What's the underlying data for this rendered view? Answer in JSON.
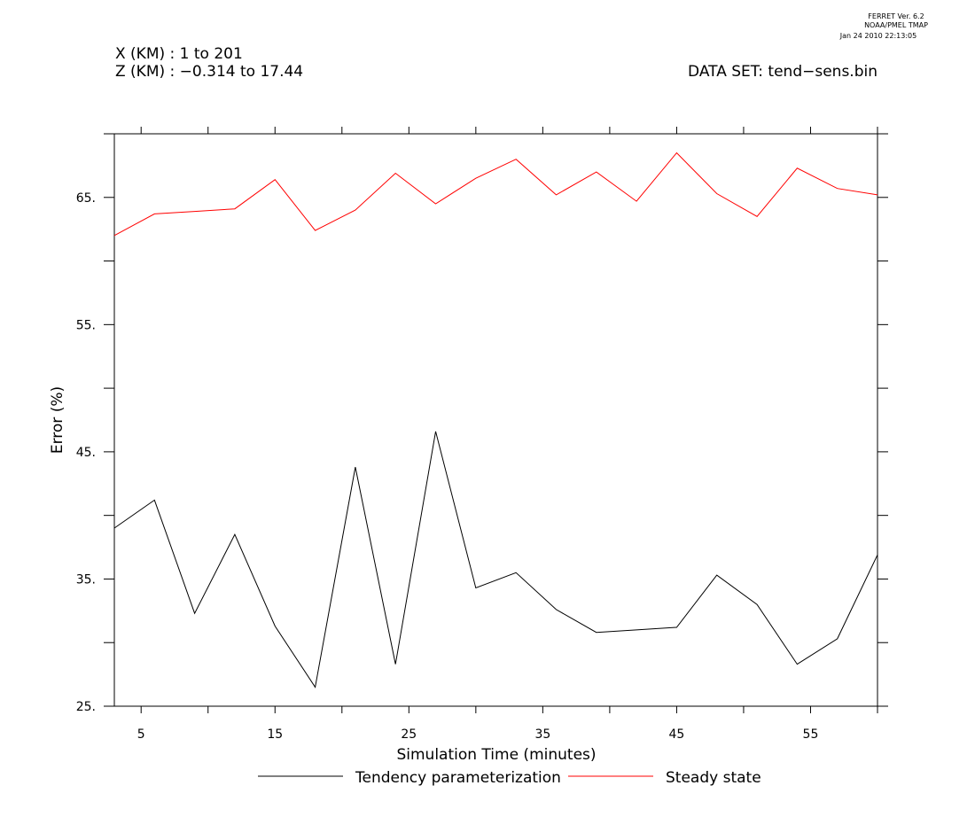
{
  "header": {
    "stamp_line1": "FERRET Ver. 6.2",
    "stamp_line2": "NOAA/PMEL TMAP",
    "stamp_line3": "Jan 24 2010 22:13:05",
    "x_range": "X (KM) : 1 to 201",
    "z_range": "Z (KM) : −0.314 to 17.44",
    "dataset": "DATA SET: tend−sens.bin"
  },
  "chart_data": {
    "type": "line",
    "xlabel": "Simulation Time (minutes)",
    "ylabel": "Error (%)",
    "xlim": [
      3,
      60
    ],
    "ylim": [
      25,
      70
    ],
    "x_ticks": [
      5,
      15,
      25,
      35,
      45,
      55
    ],
    "x_minor_ticks": [
      10,
      20,
      30,
      40,
      50,
      60
    ],
    "y_ticks": [
      25,
      35,
      45,
      55,
      65
    ],
    "y_tick_labels": [
      "25.",
      "35.",
      "45.",
      "55.",
      "65."
    ],
    "y_minor_ticks": [
      30,
      40,
      50,
      60,
      70
    ],
    "x": [
      3,
      6,
      9,
      12,
      15,
      18,
      21,
      24,
      27,
      30,
      33,
      36,
      39,
      42,
      45,
      48,
      51,
      54,
      57,
      60
    ],
    "series": [
      {
        "name": "Tendency parameterization",
        "color": "#000000",
        "values": [
          39.0,
          41.2,
          32.3,
          38.5,
          31.3,
          26.5,
          43.8,
          28.3,
          46.6,
          34.3,
          35.5,
          32.6,
          30.8,
          31.0,
          31.2,
          35.3,
          33.0,
          28.3,
          30.3,
          36.9
        ]
      },
      {
        "name": "Steady state",
        "color": "#ff0000",
        "values": [
          62.0,
          63.7,
          63.9,
          64.1,
          66.4,
          62.4,
          64.0,
          66.9,
          64.5,
          66.5,
          68.0,
          65.2,
          67.0,
          64.7,
          68.5,
          65.3,
          63.5,
          67.3,
          65.7,
          65.2
        ]
      }
    ],
    "legend_position": "bottom"
  }
}
